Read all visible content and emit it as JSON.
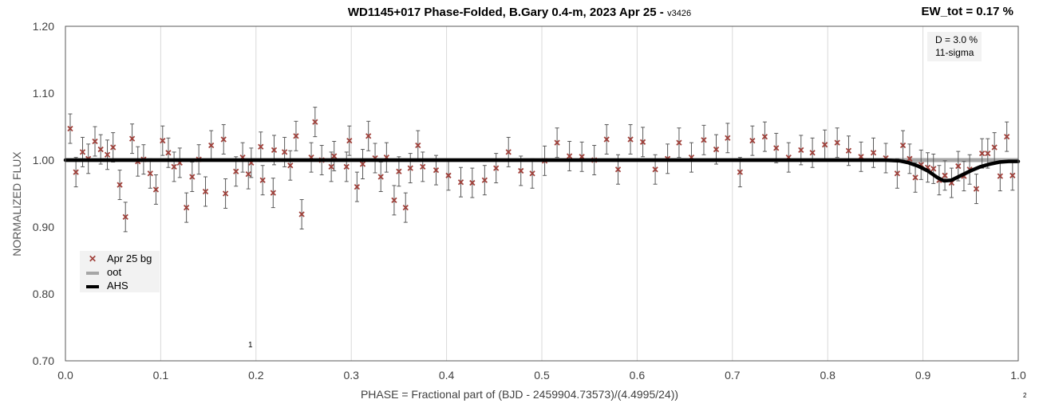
{
  "chart_data": {
    "type": "scatter",
    "title": "WD1145+017 Phase-Folded, B.Gary 0.4-m, 2023 Apr 25 -",
    "title_version": "v3426",
    "xlabel": "PHASE = Fractional part of (BJD - 2459904.73573)/(4.4995/24))",
    "ylabel": "NORMALIZED FLUX",
    "xlim": [
      0.0,
      1.0
    ],
    "ylim": [
      0.7,
      1.2
    ],
    "x_ticks": [
      "0.0",
      "0.1",
      "0.2",
      "0.3",
      "0.4",
      "0.5",
      "0.6",
      "0.7",
      "0.8",
      "0.9",
      "1.0"
    ],
    "y_ticks": [
      "0.70",
      "0.80",
      "0.90",
      "1.00",
      "1.10",
      "1.20"
    ],
    "grid": "vertical",
    "legend_position": "lower-left",
    "annotations": {
      "ew_tot": "EW_tot = 0.17 %",
      "depth": "D = 3.0 %",
      "sigma": "11-sigma",
      "marker_1": "1",
      "marker_2": "2"
    },
    "series": [
      {
        "name": "Apr 25 bg",
        "color": "#a0403a",
        "marker": "x",
        "error": 0.022,
        "points": [
          [
            0.005,
            1.047
          ],
          [
            0.011,
            0.982
          ],
          [
            0.018,
            1.012
          ],
          [
            0.024,
            1.002
          ],
          [
            0.031,
            1.028
          ],
          [
            0.037,
            1.016
          ],
          [
            0.044,
            1.008
          ],
          [
            0.05,
            1.019
          ],
          [
            0.057,
            0.963
          ],
          [
            0.063,
            0.915
          ],
          [
            0.07,
            1.032
          ],
          [
            0.076,
            0.998
          ],
          [
            0.082,
            1.001
          ],
          [
            0.089,
            0.98
          ],
          [
            0.095,
            0.956
          ],
          [
            0.102,
            1.029
          ],
          [
            0.108,
            1.011
          ],
          [
            0.114,
            0.99
          ],
          [
            0.12,
            0.996
          ],
          [
            0.127,
            0.929
          ],
          [
            0.133,
            0.975
          ],
          [
            0.14,
            1.001
          ],
          [
            0.147,
            0.953
          ],
          [
            0.153,
            1.022
          ],
          [
            0.166,
            1.031
          ],
          [
            0.168,
            0.95
          ],
          [
            0.179,
            0.983
          ],
          [
            0.186,
            1.004
          ],
          [
            0.192,
            0.979
          ],
          [
            0.195,
            0.996
          ],
          [
            0.205,
            1.02
          ],
          [
            0.207,
            0.97
          ],
          [
            0.218,
            0.951
          ],
          [
            0.219,
            1.015
          ],
          [
            0.23,
            1.012
          ],
          [
            0.236,
            0.992
          ],
          [
            0.242,
            1.036
          ],
          [
            0.248,
            0.919
          ],
          [
            0.258,
            1.004
          ],
          [
            0.262,
            1.057
          ],
          [
            0.269,
            1.0
          ],
          [
            0.279,
            0.99
          ],
          [
            0.282,
            1.006
          ],
          [
            0.295,
            0.99
          ],
          [
            0.298,
            1.029
          ],
          [
            0.306,
            0.96
          ],
          [
            0.312,
            0.994
          ],
          [
            0.318,
            1.036
          ],
          [
            0.325,
            1.003
          ],
          [
            0.331,
            0.975
          ],
          [
            0.337,
            1.004
          ],
          [
            0.345,
            0.94
          ],
          [
            0.35,
            0.983
          ],
          [
            0.357,
            0.929
          ],
          [
            0.362,
            0.988
          ],
          [
            0.37,
            1.022
          ],
          [
            0.375,
            0.99
          ],
          [
            0.389,
            0.985
          ],
          [
            0.402,
            0.977
          ],
          [
            0.415,
            0.967
          ],
          [
            0.427,
            0.966
          ],
          [
            0.44,
            0.97
          ],
          [
            0.452,
            0.988
          ],
          [
            0.465,
            1.012
          ],
          [
            0.478,
            0.984
          ],
          [
            0.49,
            0.98
          ],
          [
            0.503,
            0.999
          ],
          [
            0.516,
            1.026
          ],
          [
            0.529,
            1.006
          ],
          [
            0.542,
            1.005
          ],
          [
            0.555,
            1.0
          ],
          [
            0.568,
            1.031
          ],
          [
            0.58,
            0.986
          ],
          [
            0.593,
            1.031
          ],
          [
            0.606,
            1.027
          ],
          [
            0.619,
            0.986
          ],
          [
            0.632,
            1.002
          ],
          [
            0.644,
            1.026
          ],
          [
            0.657,
            1.004
          ],
          [
            0.67,
            1.03
          ],
          [
            0.683,
            1.016
          ],
          [
            0.695,
            1.033
          ],
          [
            0.708,
            0.982
          ],
          [
            0.721,
            1.029
          ],
          [
            0.734,
            1.035
          ],
          [
            0.746,
            1.018
          ],
          [
            0.759,
            1.004
          ],
          [
            0.772,
            1.015
          ],
          [
            0.784,
            1.011
          ],
          [
            0.797,
            1.023
          ],
          [
            0.81,
            1.026
          ],
          [
            0.822,
            1.014
          ],
          [
            0.835,
            1.005
          ],
          [
            0.848,
            1.011
          ],
          [
            0.861,
            1.003
          ],
          [
            0.873,
            0.98
          ],
          [
            0.879,
            1.022
          ],
          [
            0.886,
            1.002
          ],
          [
            0.892,
            0.974
          ],
          [
            0.898,
            0.993
          ],
          [
            0.905,
            0.989
          ],
          [
            0.911,
            0.987
          ],
          [
            0.917,
            0.97
          ],
          [
            0.923,
            0.977
          ],
          [
            0.93,
            0.966
          ],
          [
            0.937,
            0.991
          ],
          [
            0.943,
            0.976
          ],
          [
            0.949,
            0.986
          ],
          [
            0.956,
            0.957
          ],
          [
            0.962,
            1.01
          ],
          [
            0.968,
            1.01
          ],
          [
            0.975,
            1.019
          ],
          [
            0.981,
            0.976
          ],
          [
            0.988,
            1.035
          ],
          [
            0.994,
            0.977
          ]
        ]
      },
      {
        "name": "oot",
        "color": "#a6a6a6",
        "type": "line",
        "points": [
          [
            0.0,
            1.0
          ],
          [
            1.0,
            1.0
          ]
        ]
      },
      {
        "name": "AHS",
        "color": "#000000",
        "type": "line",
        "points": [
          [
            0.0,
            1.0
          ],
          [
            0.86,
            1.0
          ],
          [
            0.875,
            0.999
          ],
          [
            0.885,
            0.996
          ],
          [
            0.895,
            0.991
          ],
          [
            0.905,
            0.984
          ],
          [
            0.915,
            0.974
          ],
          [
            0.922,
            0.969
          ],
          [
            0.93,
            0.97
          ],
          [
            0.94,
            0.977
          ],
          [
            0.95,
            0.984
          ],
          [
            0.96,
            0.99
          ],
          [
            0.97,
            0.994
          ],
          [
            0.98,
            0.997
          ],
          [
            0.99,
            0.998
          ],
          [
            1.0,
            0.998
          ]
        ]
      }
    ]
  }
}
